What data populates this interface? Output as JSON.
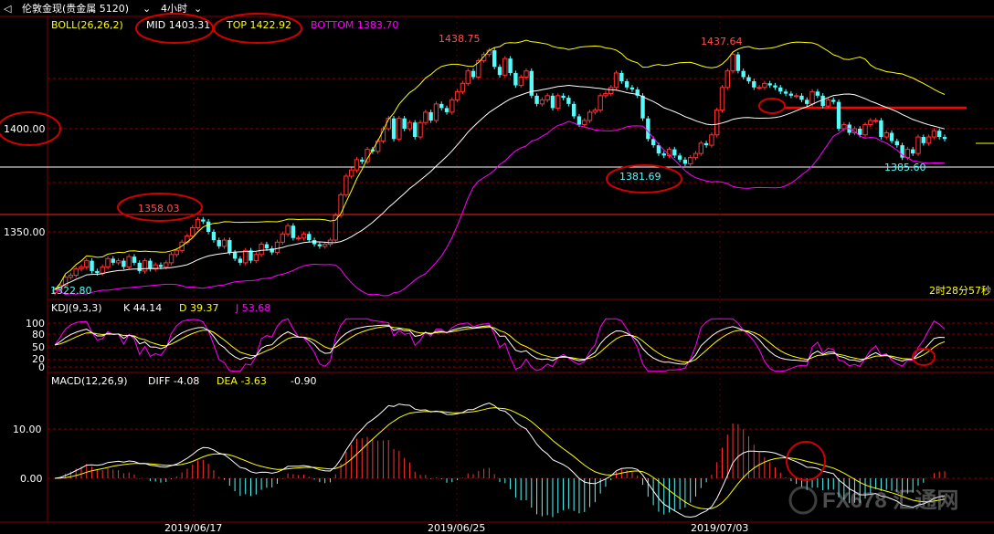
{
  "header": {
    "back_icon": "back-arrow-icon",
    "title": "伦敦金现(贵金属 5120)",
    "title_dropdown_icon": "chevron-down-icon",
    "period": "4小时",
    "period_dropdown_icon": "chevron-down-icon"
  },
  "boll": {
    "label": "BOLL(26,26,2)",
    "mid": "MID 1403.31",
    "top": "TOP 1422.92",
    "bottom": "BOTTOM 1383.70"
  },
  "price_axis": {
    "labels": [
      "1400.00",
      "1350.00"
    ],
    "range": [
      1320,
      1447
    ]
  },
  "annotations": {
    "high1": "1438.75",
    "high2": "1437.64",
    "low1": "1381.69",
    "low2": "1385.60",
    "left_high": "1358.03",
    "first_low": "1322.80",
    "countdown": "2时28分57秒"
  },
  "kdj": {
    "label": "KDJ(9,3,3)",
    "k": "K 44.14",
    "d": "D 39.37",
    "j": "J 53.68",
    "axis": [
      "100",
      "80",
      "50",
      "20",
      "0"
    ]
  },
  "macd": {
    "label": "MACD(12,26,9)",
    "diff": "DIFF -4.08",
    "dea": "DEA -3.63",
    "macd": "-0.90",
    "axis": [
      "10.00",
      "0.00"
    ],
    "range": [
      -8,
      19
    ]
  },
  "dates": [
    "2019/06/17",
    "2019/06/25",
    "2019/07/03"
  ],
  "watermark": "FX678 汇通网",
  "colors": {
    "up": "#ff3232",
    "down": "#54fcfc",
    "mid": "#ffffff",
    "band": "#ffff00",
    "bottom": "#ff00ff",
    "grid": "#800000",
    "circle": "#d00000"
  },
  "chart_data": {
    "type": "candlestick",
    "closes": [
      1322,
      1324,
      1328,
      1329,
      1332,
      1333,
      1336,
      1331,
      1330,
      1333,
      1337,
      1335,
      1336,
      1333,
      1338,
      1335,
      1331,
      1336,
      1332,
      1334,
      1333,
      1335,
      1339,
      1341,
      1345,
      1348,
      1352,
      1356,
      1355,
      1350,
      1346,
      1343,
      1346,
      1340,
      1337,
      1335,
      1341,
      1336,
      1339,
      1344,
      1342,
      1340,
      1345,
      1349,
      1353,
      1347,
      1347,
      1349,
      1346,
      1344,
      1343,
      1344,
      1346,
      1358,
      1368,
      1377,
      1380,
      1385,
      1384,
      1390,
      1389,
      1394,
      1400,
      1405,
      1395,
      1405,
      1400,
      1403,
      1396,
      1403,
      1408,
      1404,
      1412,
      1410,
      1408,
      1414,
      1418,
      1422,
      1428,
      1425,
      1433,
      1436,
      1438,
      1430,
      1426,
      1434,
      1427,
      1421,
      1425,
      1428,
      1416,
      1412,
      1414,
      1416,
      1410,
      1416,
      1415,
      1412,
      1406,
      1402,
      1404,
      1408,
      1409,
      1416,
      1417,
      1420,
      1427,
      1423,
      1420,
      1419,
      1416,
      1405,
      1395,
      1392,
      1388,
      1387,
      1390,
      1387,
      1385,
      1383,
      1386,
      1388,
      1393,
      1392,
      1397,
      1409,
      1420,
      1428,
      1436,
      1428,
      1425,
      1423,
      1420,
      1420,
      1422,
      1421,
      1420,
      1418,
      1417,
      1416,
      1416,
      1414,
      1412,
      1418,
      1416,
      1411,
      1414,
      1413,
      1400,
      1402,
      1398,
      1400,
      1397,
      1402,
      1404,
      1404,
      1396,
      1398,
      1394,
      1392,
      1386,
      1390,
      1388,
      1396,
      1393,
      1396,
      1399,
      1396,
      1395
    ]
  }
}
